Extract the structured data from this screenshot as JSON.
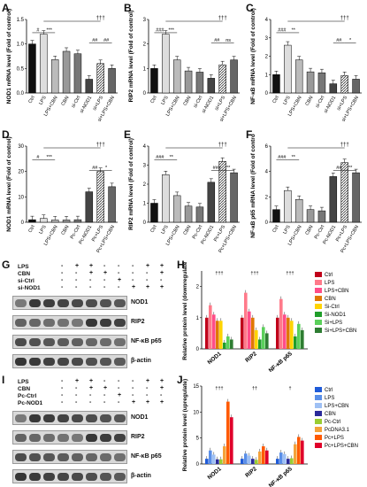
{
  "panels": {
    "A": {
      "label": "A",
      "ylabel": "NOD1 mRNA level (Fold of control)",
      "categories": [
        "Ctrl",
        "LPS",
        "LPS+CBN",
        "CBN",
        "si-Ctrl",
        "si-NOD1",
        "si+LPS",
        "si+LPS+CBN"
      ],
      "values": [
        1.0,
        1.2,
        0.68,
        0.85,
        0.8,
        0.28,
        0.6,
        0.5
      ],
      "ymax": 1.5,
      "ticks": [
        "0.0",
        "0.5",
        "1.0",
        "1.5"
      ],
      "sig": [
        "#",
        "***",
        "##",
        "##",
        "†††"
      ]
    },
    "B": {
      "label": "B",
      "ylabel": "RIP2 mRNA level (Fold of control)",
      "categories": [
        "Ctrl",
        "LPS",
        "LPS+CBN",
        "CBN",
        "si-Ctrl",
        "si-NOD1",
        "si+LPS",
        "si+LPS+CBN"
      ],
      "values": [
        1.0,
        2.4,
        1.35,
        0.9,
        0.85,
        0.6,
        1.15,
        1.35
      ],
      "ymax": 3,
      "ticks": [
        "0",
        "1",
        "2",
        "3"
      ],
      "sig": [
        "###",
        "***",
        "##",
        "ns",
        "†††"
      ]
    },
    "C": {
      "label": "C",
      "ylabel": "NF-κB mRNA level (Fold of control)",
      "categories": [
        "Ctrl",
        "LPS",
        "LPS+CBN",
        "CBN",
        "si-Ctrl",
        "si-NOD1",
        "si+LPS",
        "si+LPS+CBN"
      ],
      "values": [
        1.0,
        2.6,
        1.8,
        1.15,
        1.1,
        0.5,
        0.95,
        0.75
      ],
      "ymax": 4,
      "ticks": [
        "0",
        "1",
        "2",
        "3",
        "4"
      ],
      "sig": [
        "###",
        "**",
        "##",
        "*",
        "†††"
      ]
    },
    "D": {
      "label": "D",
      "ylabel": "NOD1 mRNA level (Fold of control)",
      "categories": [
        "Ctrl",
        "LPS",
        "LPS+CBN",
        "CBN",
        "Pc-Ctrl",
        "Pc-NOD1",
        "Pc+LPS",
        "Pc+LPS+CBN"
      ],
      "values": [
        1.0,
        1.5,
        0.9,
        0.9,
        1.0,
        12,
        20,
        14
      ],
      "ymax": 30,
      "ticks": [
        "0",
        "10",
        "20",
        "30"
      ],
      "sig": [
        "#",
        "***",
        "##",
        "*",
        "†††"
      ]
    },
    "E": {
      "label": "E",
      "ylabel": "RIP2 mRNA level (Fold of control)",
      "categories": [
        "Ctrl",
        "LPS",
        "LPS+CBN",
        "CBN",
        "Pc-Ctrl",
        "Pc-NOD1",
        "Pc+LPS",
        "Pc+LPS+CBN"
      ],
      "values": [
        1.0,
        2.5,
        1.4,
        0.85,
        0.8,
        2.1,
        3.2,
        2.6
      ],
      "ymax": 4,
      "ticks": [
        "0",
        "1",
        "2",
        "3",
        "4"
      ],
      "sig": [
        "###",
        "**",
        "###",
        "**",
        "†††"
      ]
    },
    "F": {
      "label": "F",
      "ylabel": "NF-κB p65 mRNA level (Fold of control)",
      "categories": [
        "Ctrl",
        "LPS",
        "LPS+CBN",
        "CBN",
        "Pc-Ctrl",
        "Pc-NOD1",
        "Pc+LPS",
        "Pc+LPS+CBN"
      ],
      "values": [
        1.0,
        2.5,
        1.8,
        1.0,
        0.9,
        3.6,
        4.7,
        3.9
      ],
      "ymax": 6,
      "ticks": [
        "0",
        "2",
        "4",
        "6"
      ],
      "sig": [
        "###",
        "**",
        "##",
        "**",
        "†††"
      ]
    }
  },
  "blots": {
    "G": {
      "label": "G",
      "conditions": [
        "LPS",
        "CBN",
        "si-Ctrl",
        "si-NOD1"
      ],
      "signs": [
        [
          "-",
          "+",
          "+",
          "-",
          "-",
          "-",
          "+",
          "+"
        ],
        [
          "-",
          "-",
          "+",
          "+",
          "-",
          "-",
          "-",
          "+"
        ],
        [
          "-",
          "-",
          "-",
          "-",
          "+",
          "-",
          "-",
          "-"
        ],
        [
          "-",
          "-",
          "-",
          "-",
          "-",
          "+",
          "+",
          "+"
        ]
      ],
      "proteins": [
        "NOD1",
        "RIP2",
        "NF-κB p65",
        "β-actin"
      ]
    },
    "I": {
      "label": "I",
      "conditions": [
        "LPS",
        "CBN",
        "Pc-Ctrl",
        "Pc-NOD1"
      ],
      "signs": [
        [
          "-",
          "+",
          "+",
          "-",
          "-",
          "-",
          "+",
          "+"
        ],
        [
          "-",
          "-",
          "+",
          "+",
          "-",
          "-",
          "-",
          "+"
        ],
        [
          "-",
          "-",
          "-",
          "-",
          "+",
          "-",
          "-",
          "-"
        ],
        [
          "-",
          "-",
          "-",
          "-",
          "-",
          "+",
          "+",
          "+"
        ]
      ],
      "proteins": [
        "NOD1",
        "RIP2",
        "NF-κB p65",
        "β-actin"
      ]
    }
  },
  "groupcharts": {
    "H": {
      "label": "H",
      "ylabel": "Relative protein level (downregulate)",
      "groups": [
        "NOD1",
        "RIP2",
        "NF-κB p65"
      ],
      "legend": [
        "Ctrl",
        "LPS",
        "LPS+CBN",
        "CBN",
        "Si-Ctrl",
        "Si-NOD1",
        "Si+LPS",
        "Si+LPS+CBN"
      ],
      "colors": [
        "#c0001a",
        "#ff7a8a",
        "#ff4d88",
        "#e07800",
        "#ffd400",
        "#1f9e2a",
        "#5bd05b",
        "#2e7d32"
      ],
      "values": [
        [
          1.0,
          1.4,
          1.1,
          0.9,
          0.9,
          0.2,
          0.4,
          0.3
        ],
        [
          1.0,
          1.8,
          1.2,
          1.0,
          0.6,
          0.3,
          0.7,
          0.5
        ],
        [
          1.0,
          1.6,
          1.1,
          1.0,
          0.9,
          0.4,
          0.8,
          0.6
        ]
      ],
      "ymax": 2.5,
      "ticks": [
        "0",
        "1",
        "2"
      ],
      "top_sig": [
        "†††",
        "†††",
        "†††"
      ]
    },
    "J": {
      "label": "J",
      "ylabel": "Relative protein level (upregulate)",
      "groups": [
        "NOD1",
        "RIP2",
        "NF-κB p65"
      ],
      "legend": [
        "Ctrl",
        "LPS",
        "LPS+CBN",
        "CBN",
        "Pc-Ctrl",
        "PcDNA3.1",
        "Pc+LPS",
        "Pc+LPS+CBN"
      ],
      "colors": [
        "#1f5bd8",
        "#5a8fe8",
        "#9ec0f4",
        "#2a2a9a",
        "#9acd32",
        "#f4a23a",
        "#ff5a00",
        "#e0002a"
      ],
      "values": [
        [
          1.0,
          2.6,
          1.8,
          0.9,
          0.9,
          3.4,
          12.0,
          9.0
        ],
        [
          1.0,
          2.0,
          1.6,
          1.0,
          0.8,
          2.4,
          3.4,
          2.6
        ],
        [
          1.0,
          2.2,
          1.9,
          1.0,
          1.1,
          3.8,
          5.2,
          4.5
        ]
      ],
      "ymax": 15,
      "ticks": [
        "0",
        "5",
        "10",
        "15"
      ],
      "top_sig": [
        "†††",
        "††",
        "†"
      ]
    }
  },
  "chart_data": [
    {
      "type": "bar",
      "title": "A",
      "ylabel": "NOD1 mRNA level (Fold of control)",
      "categories": [
        "Ctrl",
        "LPS",
        "LPS+CBN",
        "CBN",
        "si-Ctrl",
        "si-NOD1",
        "si+LPS",
        "si+LPS+CBN"
      ],
      "values": [
        1.0,
        1.2,
        0.68,
        0.85,
        0.8,
        0.28,
        0.6,
        0.5
      ]
    },
    {
      "type": "bar",
      "title": "B",
      "ylabel": "RIP2 mRNA level (Fold of control)",
      "categories": [
        "Ctrl",
        "LPS",
        "LPS+CBN",
        "CBN",
        "si-Ctrl",
        "si-NOD1",
        "si+LPS",
        "si+LPS+CBN"
      ],
      "values": [
        1.0,
        2.4,
        1.35,
        0.9,
        0.85,
        0.6,
        1.15,
        1.35
      ]
    },
    {
      "type": "bar",
      "title": "C",
      "ylabel": "NF-κB mRNA level (Fold of control)",
      "categories": [
        "Ctrl",
        "LPS",
        "LPS+CBN",
        "CBN",
        "si-Ctrl",
        "si-NOD1",
        "si+LPS",
        "si+LPS+CBN"
      ],
      "values": [
        1.0,
        2.6,
        1.8,
        1.15,
        1.1,
        0.5,
        0.95,
        0.75
      ]
    },
    {
      "type": "bar",
      "title": "D",
      "ylabel": "NOD1 mRNA level (Fold of control)",
      "categories": [
        "Ctrl",
        "LPS",
        "LPS+CBN",
        "CBN",
        "Pc-Ctrl",
        "Pc-NOD1",
        "Pc+LPS",
        "Pc+LPS+CBN"
      ],
      "values": [
        1.0,
        1.5,
        0.9,
        0.9,
        1.0,
        12,
        20,
        14
      ]
    },
    {
      "type": "bar",
      "title": "E",
      "ylabel": "RIP2 mRNA level (Fold of control)",
      "categories": [
        "Ctrl",
        "LPS",
        "LPS+CBN",
        "CBN",
        "Pc-Ctrl",
        "Pc-NOD1",
        "Pc+LPS",
        "Pc+LPS+CBN"
      ],
      "values": [
        1.0,
        2.5,
        1.4,
        0.85,
        0.8,
        2.1,
        3.2,
        2.6
      ]
    },
    {
      "type": "bar",
      "title": "F",
      "ylabel": "NF-κB p65 mRNA level (Fold of control)",
      "categories": [
        "Ctrl",
        "LPS",
        "LPS+CBN",
        "CBN",
        "Pc-Ctrl",
        "Pc-NOD1",
        "Pc+LPS",
        "Pc+LPS+CBN"
      ],
      "values": [
        1.0,
        2.5,
        1.8,
        1.0,
        0.9,
        3.6,
        4.7,
        3.9
      ]
    }
  ]
}
